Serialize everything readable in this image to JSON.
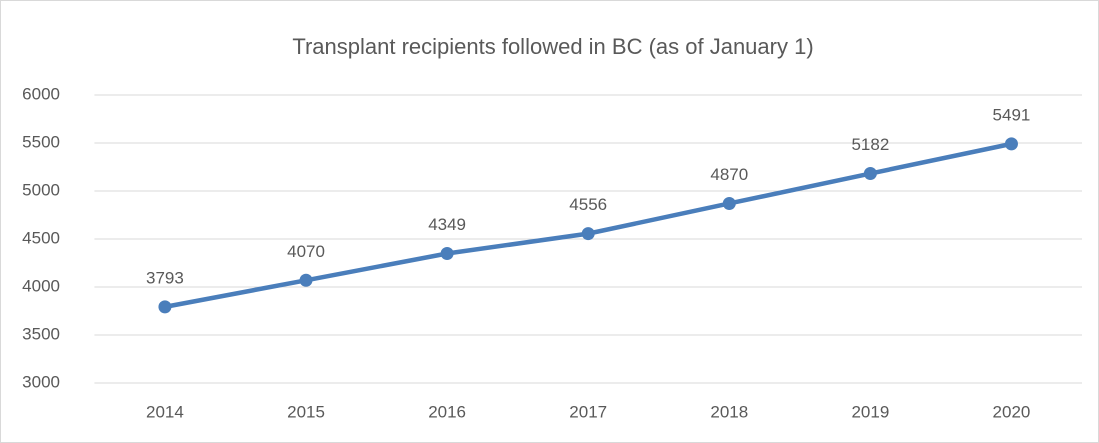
{
  "chart_data": {
    "type": "line",
    "title": "Transplant recipients followed in BC (as of January 1)",
    "categories": [
      "2014",
      "2015",
      "2016",
      "2017",
      "2018",
      "2019",
      "2020"
    ],
    "values": [
      3793,
      4070,
      4349,
      4556,
      4870,
      5182,
      5491
    ],
    "color": "#4a7ebb",
    "ylim": [
      3000,
      6000
    ],
    "yticks": [
      3000,
      3500,
      4000,
      4500,
      5000,
      5500,
      6000
    ],
    "grid": true,
    "data_labels": true
  }
}
